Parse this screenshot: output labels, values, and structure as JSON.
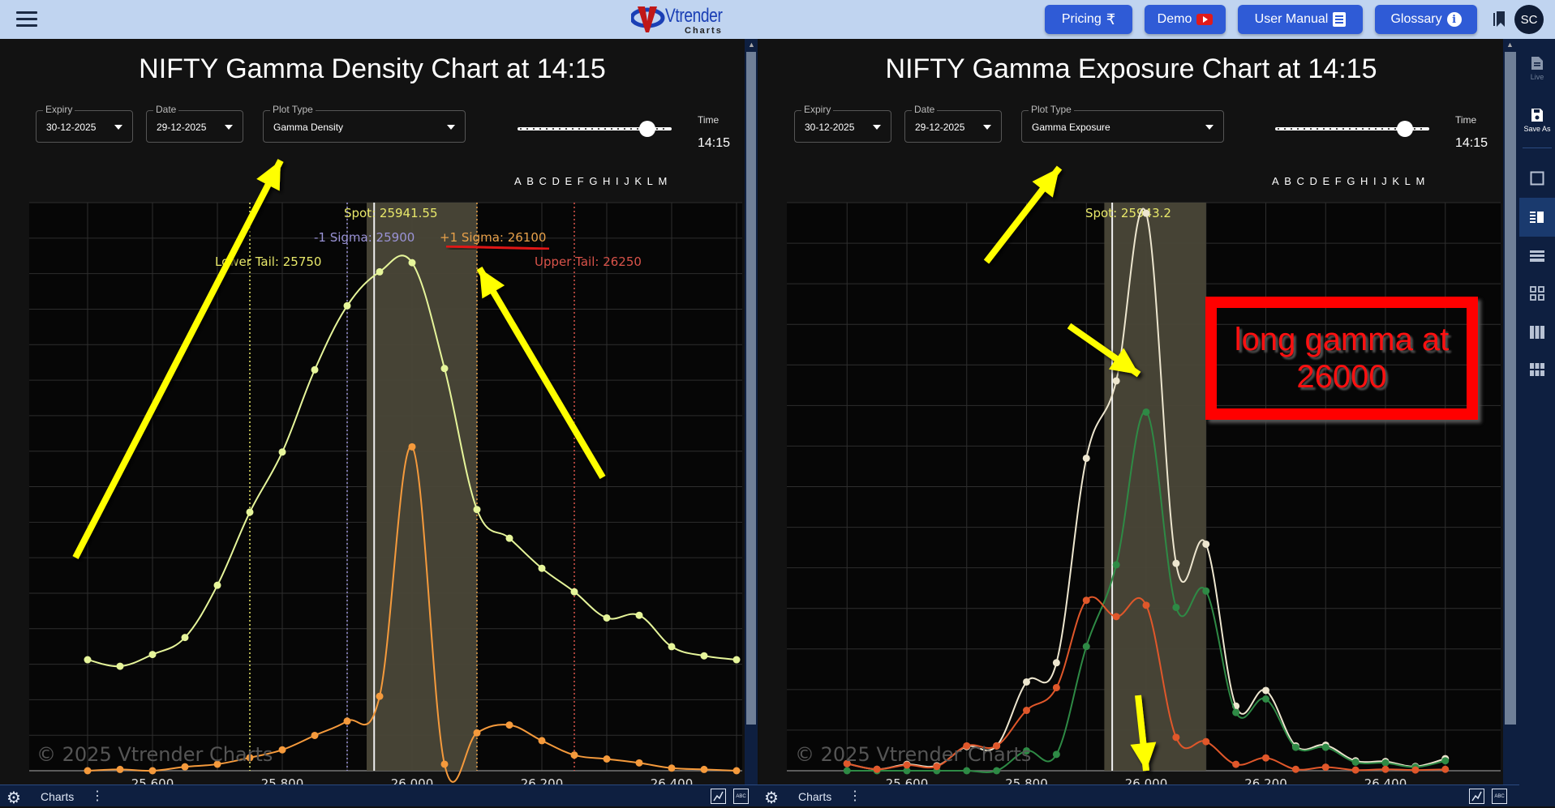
{
  "topbar": {
    "brand": "Vtrender",
    "brand_sub": "Charts",
    "buttons": [
      {
        "label": "Pricing",
        "icon": "rupee-icon"
      },
      {
        "label": "Demo",
        "icon": "youtube-icon"
      },
      {
        "label": "User Manual",
        "icon": "document-icon"
      },
      {
        "label": "Glossary",
        "icon": "info-icon"
      }
    ],
    "rupee": "₹",
    "info": "i",
    "avatar_initials": "SC"
  },
  "left_panel": {
    "title": "NIFTY Gamma Density Chart at 14:15",
    "expiry_label": "Expiry",
    "expiry_value": "30-12-2025",
    "date_label": "Date",
    "date_value": "29-12-2025",
    "plot_type_label": "Plot Type",
    "plot_type_value": "Gamma Density",
    "slider_letters": "ABCDEFGHIJKLM",
    "time_label": "Time",
    "time_value": "14:15",
    "watermark": "© 2025 Vtrender Charts"
  },
  "right_panel": {
    "title": "NIFTY Gamma Exposure Chart at 14:15",
    "expiry_label": "Expiry",
    "expiry_value": "30-12-2025",
    "date_label": "Date",
    "date_value": "29-12-2025",
    "plot_type_label": "Plot Type",
    "plot_type_value": "Gamma Exposure",
    "slider_letters": "ABCDEFGHIJKLM",
    "time_label": "Time",
    "time_value": "14:15",
    "watermark": "© 2025 Vtrender Charts",
    "annotation": "long gamma at 26000"
  },
  "bottombar": {
    "label": "Charts",
    "abc": "ABC"
  },
  "sidebar": {
    "items": [
      {
        "label": "Live",
        "icon": "document-icon"
      },
      {
        "label": "Save As",
        "icon": "save-icon"
      },
      {
        "label": "",
        "icon": "single-layout-icon"
      },
      {
        "label": "",
        "icon": "split-layout-icon"
      },
      {
        "label": "",
        "icon": "rows-layout-icon"
      },
      {
        "label": "",
        "icon": "grid-layout-icon"
      },
      {
        "label": "",
        "icon": "columns-layout-icon"
      },
      {
        "label": "",
        "icon": "grid6-layout-icon"
      }
    ]
  },
  "chart_data": [
    {
      "type": "line",
      "title": "NIFTY Gamma Density Chart at 14:15",
      "xlabel": "",
      "ylabel": "",
      "x_ticks": [
        "25.600",
        "25.800",
        "26.000",
        "26.200",
        "26.400"
      ],
      "x": [
        25500,
        25550,
        25600,
        25650,
        25700,
        25750,
        25800,
        25850,
        25900,
        25950,
        26000,
        26050,
        26100,
        26150,
        26200,
        26250,
        26300,
        26350,
        26400,
        26450,
        26500
      ],
      "series": [
        {
          "name": "Gamma density (light green)",
          "color": "#e6f59a",
          "values": [
            8.5,
            8.0,
            8.9,
            10.2,
            14.2,
            19.8,
            24.4,
            30.7,
            35.6,
            38.2,
            38.9,
            30.8,
            20.0,
            17.8,
            15.5,
            13.7,
            11.7,
            11.9,
            9.5,
            8.8,
            8.5
          ]
        },
        {
          "name": "Gamma (orange)",
          "color": "#f59a3c",
          "values": [
            0.0,
            0.1,
            0.0,
            0.3,
            0.5,
            1.0,
            1.6,
            2.7,
            3.8,
            5.7,
            24.8,
            0.5,
            2.9,
            3.5,
            2.3,
            1.2,
            0.9,
            0.6,
            0.2,
            0.1,
            0.0
          ]
        }
      ],
      "annotations": [
        {
          "label": "Spot: 25941.55",
          "x": 25941.55,
          "color": "#e8e86a"
        },
        {
          "label": "-1 Sigma: 25900",
          "x": 25900,
          "color": "#9a93d6"
        },
        {
          "label": "+1 Sigma: 26100",
          "x": 26100,
          "color": "#e8a14a"
        },
        {
          "label": "Lower Tail: 25750",
          "x": 25750,
          "color": "#e8e86a"
        },
        {
          "label": "Upper Tail: 26250",
          "x": 26250,
          "color": "#d9534a"
        }
      ],
      "shaded_range": [
        25930,
        26100
      ],
      "grid": true
    },
    {
      "type": "line",
      "title": "NIFTY Gamma Exposure Chart at 14:15",
      "xlabel": "",
      "ylabel": "",
      "x_ticks": [
        "25.600",
        "25.800",
        "26.000",
        "26.200",
        "26.400"
      ],
      "x": [
        25500,
        25550,
        25600,
        25650,
        25700,
        25750,
        25800,
        25850,
        25900,
        25950,
        26000,
        26050,
        26100,
        26150,
        26200,
        26250,
        26300,
        26350,
        26400,
        26450,
        26500
      ],
      "series": [
        {
          "name": "Total (white)",
          "color": "#ede6cf",
          "values": [
            1.0,
            0.2,
            0.9,
            0.7,
            3.4,
            3.5,
            12.5,
            15.2,
            44.0,
            54.9,
            78.5,
            29.2,
            31.9,
            9.1,
            11.3,
            3.5,
            3.6,
            1.4,
            1.3,
            0.6,
            1.7
          ]
        },
        {
          "name": "Call/Positive (green)",
          "color": "#2e8a45",
          "values": [
            0.0,
            0.0,
            0.0,
            0.0,
            0.0,
            0.0,
            2.8,
            2.3,
            17.5,
            29.0,
            50.5,
            23.0,
            25.3,
            8.2,
            10.1,
            3.3,
            3.3,
            1.2,
            1.1,
            0.5,
            1.4
          ]
        },
        {
          "name": "Put/Negative (orange-red)",
          "color": "#e0572a",
          "values": [
            1.0,
            0.2,
            0.8,
            0.6,
            3.5,
            3.5,
            8.5,
            11.7,
            24.0,
            21.7,
            23.3,
            4.7,
            4.1,
            0.9,
            1.8,
            0.2,
            0.5,
            0.1,
            0.2,
            0.1,
            0.2
          ]
        }
      ],
      "annotations": [
        {
          "label": "Spot: 25943.2",
          "x": 25943.2,
          "color": "#e8e86a"
        },
        {
          "label": "long gamma at 26000",
          "x": 26000,
          "color": "#ff0000"
        }
      ],
      "shaded_range": [
        25930,
        26100
      ],
      "grid": true
    }
  ]
}
